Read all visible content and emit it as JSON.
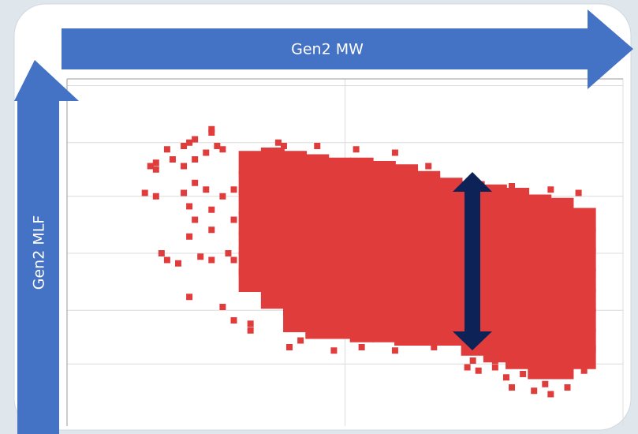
{
  "chart_data": {
    "type": "scatter",
    "xlabel": "Gen2 MW",
    "ylabel": "Gen2 MLF",
    "xlim": [
      0,
      100
    ],
    "ylim": [
      0,
      100
    ],
    "xticks": [
      0,
      50,
      100
    ],
    "yticks": [
      15,
      31,
      48,
      65,
      81,
      98
    ],
    "grid": true,
    "series": [
      {
        "color": "#e03c3c",
        "marker_size": 30,
        "x": [
          33,
          33,
          33,
          33,
          33,
          33,
          33,
          37,
          37,
          37,
          37,
          37,
          37,
          37,
          37,
          41,
          41,
          41,
          41,
          41,
          41,
          41,
          41,
          41,
          45,
          45,
          45,
          45,
          45,
          45,
          45,
          45,
          45,
          49,
          49,
          49,
          49,
          49,
          49,
          49,
          49,
          49,
          53,
          53,
          53,
          53,
          53,
          53,
          53,
          53,
          53,
          57,
          57,
          57,
          57,
          57,
          57,
          57,
          57,
          57,
          61,
          61,
          61,
          61,
          61,
          61,
          61,
          61,
          61,
          65,
          65,
          65,
          65,
          65,
          65,
          65,
          65,
          65,
          69,
          69,
          69,
          69,
          69,
          69,
          69,
          69,
          73,
          73,
          73,
          73,
          73,
          73,
          73,
          73,
          73,
          77,
          77,
          77,
          77,
          77,
          77,
          77,
          77,
          77,
          81,
          81,
          81,
          81,
          81,
          81,
          81,
          81,
          81,
          85,
          85,
          85,
          85,
          85,
          85,
          85,
          85,
          85,
          89,
          89,
          89,
          89,
          89,
          89,
          89,
          89,
          89,
          93,
          93,
          93,
          93,
          93,
          93,
          93,
          93
        ],
        "values": [
          75,
          69,
          63,
          57,
          51,
          45,
          40,
          76,
          70,
          64,
          58,
          52,
          46,
          40,
          35,
          75,
          69,
          63,
          57,
          51,
          45,
          39,
          33,
          28,
          74,
          68,
          62,
          56,
          50,
          44,
          38,
          32,
          26,
          73,
          67,
          61,
          55,
          49,
          43,
          37,
          31,
          26,
          73,
          67,
          61,
          55,
          49,
          43,
          37,
          31,
          25,
          72,
          66,
          60,
          54,
          48,
          42,
          36,
          30,
          25,
          71,
          65,
          59,
          53,
          47,
          41,
          35,
          29,
          24,
          69,
          63,
          57,
          51,
          45,
          39,
          33,
          27,
          24,
          67,
          61,
          55,
          49,
          43,
          37,
          31,
          24,
          66,
          60,
          54,
          48,
          42,
          36,
          30,
          24,
          21,
          65,
          59,
          53,
          47,
          41,
          35,
          29,
          23,
          19,
          64,
          58,
          52,
          46,
          40,
          34,
          28,
          22,
          17,
          62,
          56,
          50,
          44,
          38,
          32,
          26,
          20,
          14,
          61,
          55,
          49,
          43,
          37,
          31,
          25,
          19,
          14,
          58,
          52,
          46,
          40,
          34,
          28,
          22,
          17
        ]
      },
      {
        "color": "#e03c3c",
        "marker_size": 8,
        "x": [
          16,
          16,
          15,
          18,
          21,
          22,
          23,
          26,
          26,
          27,
          19,
          21,
          23,
          25,
          28,
          23,
          25,
          22,
          26,
          28,
          30,
          21,
          23,
          26,
          22,
          30,
          14,
          16,
          17,
          18,
          20,
          24,
          26,
          29,
          30,
          22,
          28,
          30,
          33,
          33,
          38,
          39,
          45,
          52,
          59,
          65,
          80,
          87,
          92,
          40,
          42,
          48,
          53,
          59,
          66,
          73,
          74,
          77,
          79,
          80,
          82,
          84,
          86,
          87,
          89,
          90,
          93,
          92,
          72,
          77,
          82
        ],
        "values": [
          75,
          73,
          74,
          79,
          80,
          81,
          82,
          84,
          85,
          80,
          76,
          74,
          76,
          78,
          79,
          69,
          67,
          62,
          61,
          65,
          67,
          66,
          58,
          55,
          53,
          58,
          66,
          65,
          48,
          46,
          45,
          47,
          46,
          48,
          46,
          35,
          32,
          28,
          27,
          25,
          81,
          80,
          80,
          79,
          78,
          74,
          68,
          67,
          66,
          20,
          22,
          19,
          20,
          19,
          20,
          16,
          13,
          14,
          11,
          8,
          12,
          7,
          9,
          6,
          13,
          8,
          13,
          16,
          14,
          16,
          15
        ]
      }
    ]
  }
}
